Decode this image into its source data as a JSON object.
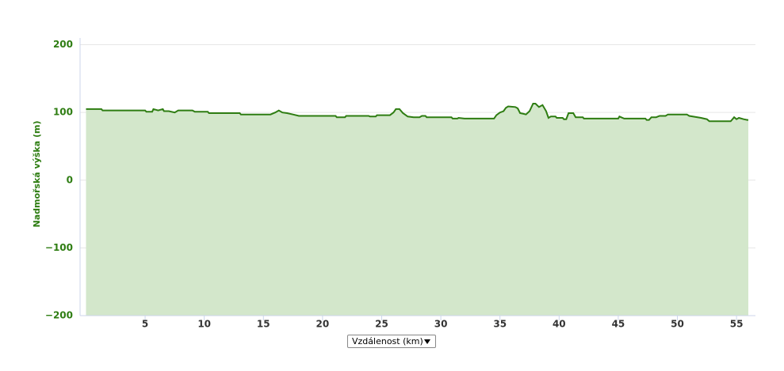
{
  "chart_data": {
    "type": "area",
    "ylabel": "Nadmořská výška (m)",
    "xlabel": "Vzdálenost (km)",
    "x": [
      0,
      1.3,
      1.4,
      5,
      5.1,
      5.6,
      5.7,
      6.1,
      6.5,
      6.6,
      7,
      7.5,
      7.8,
      9,
      9.2,
      10.3,
      10.4,
      13,
      13.1,
      15.6,
      16,
      16.3,
      16.6,
      17,
      17.5,
      18,
      21.1,
      21.2,
      21.9,
      22,
      23.9,
      24,
      24.5,
      24.6,
      25.7,
      26,
      26.2,
      26.5,
      26.8,
      27.2,
      27.7,
      28.2,
      28.4,
      28.7,
      28.8,
      30.9,
      31,
      31.4,
      31.5,
      32,
      34.5,
      34.7,
      35,
      35.3,
      35.5,
      35.7,
      36.3,
      36.5,
      36.7,
      37,
      37.2,
      37.5,
      37.8,
      38,
      38.3,
      38.6,
      38.9,
      39.1,
      39.3,
      39.7,
      39.8,
      40.3,
      40.4,
      40.6,
      40.8,
      41.2,
      41.4,
      42,
      42.1,
      45,
      45.1,
      45.5,
      47.3,
      47.4,
      47.6,
      47.8,
      48.2,
      48.5,
      49,
      49.2,
      50.8,
      51,
      52,
      52.5,
      52.7,
      54.5,
      54.6,
      54.8,
      55,
      55.2,
      55.6,
      55.9,
      56
    ],
    "values": [
      105,
      105,
      103,
      103,
      101,
      101,
      105,
      103,
      105,
      102,
      102,
      100,
      103,
      103,
      101,
      101,
      99,
      99,
      97,
      97,
      100,
      103,
      100,
      99,
      97,
      95,
      95,
      93,
      93,
      95,
      95,
      94,
      94,
      96,
      96,
      100,
      105,
      105,
      99,
      94,
      93,
      93,
      95,
      95,
      93,
      93,
      91,
      91,
      92,
      91,
      91,
      96,
      100,
      102,
      107,
      109,
      108,
      106,
      99,
      98,
      97,
      102,
      113,
      113,
      108,
      111,
      102,
      92,
      94,
      94,
      92,
      92,
      90,
      90,
      99,
      99,
      93,
      93,
      91,
      91,
      94,
      91,
      91,
      89,
      89,
      93,
      93,
      95,
      95,
      97,
      97,
      95,
      92,
      90,
      87,
      87,
      89,
      93,
      90,
      92,
      90,
      89,
      89
    ],
    "color": "#2e7d12",
    "fill": "#d3e7cb",
    "xlim": [
      -0.5,
      56.6
    ],
    "ylim": [
      -200,
      210
    ],
    "xticks": [
      5,
      10,
      15,
      20,
      25,
      30,
      35,
      40,
      45,
      50,
      55
    ],
    "yticks": [
      {
        "value": -200,
        "label": "−200"
      },
      {
        "value": -100,
        "label": "−100"
      },
      0,
      100,
      200
    ],
    "grid": true
  }
}
